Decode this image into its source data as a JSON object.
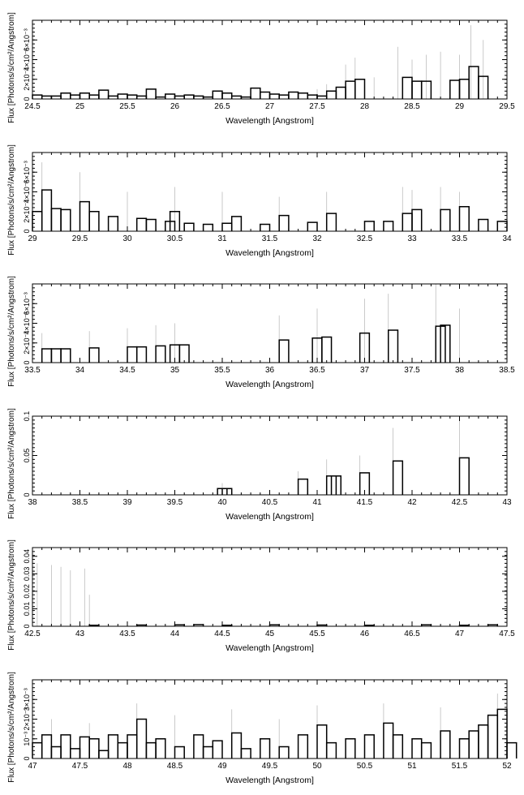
{
  "chart_data": [
    {
      "type": "step",
      "xlabel": "Wavelength [Angstrom]",
      "ylabel": "Flux [Photons/s/cm²/Angstrom]",
      "xlim": [
        24.5,
        29.5
      ],
      "ylim": [
        0,
        0.008
      ],
      "xticks": [
        "24.5",
        "25",
        "25.5",
        "26",
        "26.5",
        "27",
        "27.5",
        "28",
        "28.5",
        "29",
        "29.5"
      ],
      "yticks": [
        {
          "v": 0,
          "label": "0"
        },
        {
          "v": 0.002,
          "label": "2×10⁻³"
        },
        {
          "v": 0.004,
          "label": "4×10⁻³"
        },
        {
          "v": 0.006,
          "label": "6×10⁻³"
        }
      ],
      "bins": [
        [
          24.5,
          0.0004
        ],
        [
          24.6,
          0.0003
        ],
        [
          24.7,
          0.0003
        ],
        [
          24.8,
          0.0006
        ],
        [
          24.9,
          0.0004
        ],
        [
          25.0,
          0.0006
        ],
        [
          25.1,
          0.0004
        ],
        [
          25.2,
          0.0009
        ],
        [
          25.3,
          0.0003
        ],
        [
          25.4,
          0.0005
        ],
        [
          25.5,
          0.0004
        ],
        [
          25.6,
          0.0003
        ],
        [
          25.7,
          0.001
        ],
        [
          25.8,
          0.0002
        ],
        [
          25.9,
          0.0005
        ],
        [
          26.0,
          0.0003
        ],
        [
          26.1,
          0.0004
        ],
        [
          26.2,
          0.0003
        ],
        [
          26.3,
          0.0002
        ],
        [
          26.4,
          0.0008
        ],
        [
          26.5,
          0.0006
        ],
        [
          26.6,
          0.0003
        ],
        [
          26.7,
          0.0002
        ],
        [
          26.8,
          0.0011
        ],
        [
          26.9,
          0.0007
        ],
        [
          27.0,
          0.0005
        ],
        [
          27.1,
          0.0004
        ],
        [
          27.2,
          0.0007
        ],
        [
          27.3,
          0.0006
        ],
        [
          27.4,
          0.0004
        ],
        [
          27.5,
          0.0003
        ],
        [
          27.6,
          0.0008
        ],
        [
          27.7,
          0.0012
        ],
        [
          27.8,
          0.0018
        ],
        [
          27.9,
          0.002
        ],
        [
          28.4,
          0.0022
        ],
        [
          28.5,
          0.0018
        ],
        [
          28.6,
          0.0018
        ],
        [
          28.9,
          0.0019
        ],
        [
          29.0,
          0.002
        ],
        [
          29.1,
          0.0033
        ],
        [
          29.2,
          0.0023
        ]
      ],
      "errorbars": [
        [
          27.5,
          0.001
        ],
        [
          27.6,
          0.0015
        ],
        [
          27.8,
          0.0035
        ],
        [
          27.9,
          0.0042
        ],
        [
          28.1,
          0.0022
        ],
        [
          28.35,
          0.0053
        ],
        [
          28.5,
          0.004
        ],
        [
          28.65,
          0.0045
        ],
        [
          28.8,
          0.0048
        ],
        [
          29.0,
          0.0045
        ],
        [
          29.12,
          0.0075
        ],
        [
          29.25,
          0.006
        ]
      ]
    },
    {
      "type": "step",
      "xlabel": "Wavelength [Angstrom]",
      "ylabel": "Flux [Photons/s/cm²/Angstrom]",
      "xlim": [
        29,
        34
      ],
      "ylim": [
        0,
        0.008
      ],
      "xticks": [
        "29",
        "29.5",
        "30",
        "30.5",
        "31",
        "31.5",
        "32",
        "32.5",
        "33",
        "33.5",
        "34"
      ],
      "yticks": [
        {
          "v": 0,
          "label": "0"
        },
        {
          "v": 0.002,
          "label": "2×10⁻³"
        },
        {
          "v": 0.004,
          "label": "4×10⁻³"
        },
        {
          "v": 0.006,
          "label": "6×10⁻³"
        }
      ],
      "bins": [
        [
          29.0,
          0.002
        ],
        [
          29.1,
          0.0042
        ],
        [
          29.2,
          0.0023
        ],
        [
          29.3,
          0.0022
        ],
        [
          29.5,
          0.003
        ],
        [
          29.6,
          0.002
        ],
        [
          29.8,
          0.0015
        ],
        [
          30.1,
          0.0013
        ],
        [
          30.2,
          0.0012
        ],
        [
          30.4,
          0.001
        ],
        [
          30.45,
          0.002
        ],
        [
          30.6,
          0.0008
        ],
        [
          30.8,
          0.0007
        ],
        [
          31.0,
          0.0008
        ],
        [
          31.1,
          0.0015
        ],
        [
          31.4,
          0.0007
        ],
        [
          31.6,
          0.0016
        ],
        [
          31.9,
          0.0009
        ],
        [
          32.1,
          0.0018
        ],
        [
          32.5,
          0.001
        ],
        [
          32.7,
          0.001
        ],
        [
          32.9,
          0.0018
        ],
        [
          33.0,
          0.0022
        ],
        [
          33.3,
          0.0022
        ],
        [
          33.5,
          0.0025
        ],
        [
          33.7,
          0.0012
        ],
        [
          33.9,
          0.001
        ]
      ],
      "errorbars": [
        [
          29.1,
          0.007
        ],
        [
          29.5,
          0.006
        ],
        [
          30.0,
          0.004
        ],
        [
          30.5,
          0.0045
        ],
        [
          31.0,
          0.004
        ],
        [
          31.6,
          0.0035
        ],
        [
          32.1,
          0.004
        ],
        [
          32.9,
          0.0045
        ],
        [
          33.0,
          0.0042
        ],
        [
          33.3,
          0.0045
        ],
        [
          33.5,
          0.004
        ]
      ]
    },
    {
      "type": "step",
      "xlabel": "Wavelength [Angstrom]",
      "ylabel": "Flux [Photons/s/cm²/Angstrom]",
      "xlim": [
        33.5,
        38.5
      ],
      "ylim": [
        0,
        0.008
      ],
      "xticks": [
        "33.5",
        "34",
        "34.5",
        "35",
        "35.5",
        "36",
        "36.5",
        "37",
        "37.5",
        "38",
        "38.5"
      ],
      "yticks": [
        {
          "v": 0,
          "label": "0"
        },
        {
          "v": 0.002,
          "label": "2×10⁻³"
        },
        {
          "v": 0.004,
          "label": "4×10⁻³"
        },
        {
          "v": 0.006,
          "label": "6×10⁻³"
        }
      ],
      "bins": [
        [
          33.6,
          0.0014
        ],
        [
          33.7,
          0.0014
        ],
        [
          33.8,
          0.0014
        ],
        [
          34.1,
          0.0015
        ],
        [
          34.5,
          0.0016
        ],
        [
          34.6,
          0.0016
        ],
        [
          34.8,
          0.0017
        ],
        [
          34.95,
          0.0018
        ],
        [
          35.05,
          0.0018
        ],
        [
          36.1,
          0.0023
        ],
        [
          36.45,
          0.0025
        ],
        [
          36.55,
          0.0026
        ],
        [
          36.95,
          0.003
        ],
        [
          37.25,
          0.0033
        ],
        [
          37.75,
          0.0037
        ],
        [
          37.8,
          0.0038
        ]
      ],
      "errorbars": [
        [
          33.6,
          0.003
        ],
        [
          34.1,
          0.0032
        ],
        [
          34.5,
          0.0035
        ],
        [
          34.8,
          0.0038
        ],
        [
          35.0,
          0.004
        ],
        [
          36.1,
          0.0048
        ],
        [
          36.5,
          0.0055
        ],
        [
          37.0,
          0.0065
        ],
        [
          37.25,
          0.007
        ],
        [
          37.75,
          0.008
        ],
        [
          38.0,
          0.0055
        ]
      ]
    },
    {
      "type": "step",
      "xlabel": "Wavelength [Angstrom]",
      "ylabel": "Flux [Photons/s/cm²/Angstrom]",
      "xlim": [
        38,
        43
      ],
      "ylim": [
        0,
        0.1
      ],
      "xticks": [
        "38",
        "38.5",
        "39",
        "39.5",
        "40",
        "40.5",
        "41",
        "41.5",
        "42",
        "42.5",
        "43"
      ],
      "yticks": [
        {
          "v": 0,
          "label": "0"
        },
        {
          "v": 0.05,
          "label": "0.05"
        },
        {
          "v": 0.1,
          "label": "0.1"
        }
      ],
      "bins": [
        [
          39.95,
          0.008
        ],
        [
          40.0,
          0.008
        ],
        [
          40.8,
          0.02
        ],
        [
          41.1,
          0.024
        ],
        [
          41.15,
          0.024
        ],
        [
          41.45,
          0.028
        ],
        [
          41.8,
          0.043
        ],
        [
          42.5,
          0.047
        ]
      ],
      "errorbars": [
        [
          40.0,
          0.015
        ],
        [
          40.8,
          0.03
        ],
        [
          41.1,
          0.045
        ],
        [
          41.45,
          0.05
        ],
        [
          41.8,
          0.085
        ],
        [
          42.5,
          0.095
        ]
      ]
    },
    {
      "type": "step",
      "xlabel": "Wavelength [Angstrom]",
      "ylabel": "Flux [Photons/s/cm²/Angstrom]",
      "xlim": [
        42.5,
        47.5
      ],
      "ylim": [
        0,
        0.045
      ],
      "xticks": [
        "42.5",
        "43",
        "43.5",
        "44",
        "44.5",
        "45",
        "45.5",
        "46",
        "46.5",
        "47",
        "47.5"
      ],
      "yticks": [
        {
          "v": 0,
          "label": "0"
        },
        {
          "v": 0.01,
          "label": "0.01"
        },
        {
          "v": 0.02,
          "label": "0.02"
        },
        {
          "v": 0.03,
          "label": "0.03"
        },
        {
          "v": 0.04,
          "label": "0.04"
        }
      ],
      "bins": [
        [
          43.1,
          0.0006
        ],
        [
          43.6,
          0.0007
        ],
        [
          44.0,
          0.0008
        ],
        [
          44.2,
          0.0009
        ],
        [
          44.5,
          0.0006
        ],
        [
          45.0,
          0.0008
        ],
        [
          45.5,
          0.0007
        ],
        [
          46.0,
          0.0006
        ],
        [
          46.6,
          0.0008
        ],
        [
          47.0,
          0.0006
        ],
        [
          47.3,
          0.0008
        ]
      ],
      "errorbars": [
        [
          42.55,
          0.036
        ],
        [
          42.7,
          0.035
        ],
        [
          42.8,
          0.034
        ],
        [
          42.9,
          0.032
        ],
        [
          43.05,
          0.033
        ],
        [
          43.1,
          0.018
        ]
      ]
    },
    {
      "type": "step",
      "xlabel": "Wavelength [Angstrom]",
      "ylabel": "Flux [Photons/s/cm²/Angstrom]",
      "xlim": [
        47,
        52
      ],
      "ylim": [
        0,
        0.004
      ],
      "xticks": [
        "47",
        "47.5",
        "48",
        "48.5",
        "49",
        "49.5",
        "50",
        "50.5",
        "51",
        "51.5",
        "52"
      ],
      "yticks": [
        {
          "v": 0,
          "label": "0"
        },
        {
          "v": 0.001,
          "label": "10⁻³"
        },
        {
          "v": 0.002,
          "label": "2×10⁻³"
        },
        {
          "v": 0.003,
          "label": "3×10⁻³"
        }
      ],
      "bins": [
        [
          47.0,
          0.0008
        ],
        [
          47.1,
          0.0012
        ],
        [
          47.2,
          0.0006
        ],
        [
          47.3,
          0.0012
        ],
        [
          47.4,
          0.0005
        ],
        [
          47.5,
          0.0011
        ],
        [
          47.6,
          0.001
        ],
        [
          47.7,
          0.0004
        ],
        [
          47.8,
          0.0012
        ],
        [
          47.9,
          0.0008
        ],
        [
          48.0,
          0.0012
        ],
        [
          48.1,
          0.002
        ],
        [
          48.2,
          0.0008
        ],
        [
          48.3,
          0.001
        ],
        [
          48.5,
          0.0006
        ],
        [
          48.7,
          0.0012
        ],
        [
          48.8,
          0.0006
        ],
        [
          48.9,
          0.0009
        ],
        [
          49.1,
          0.0013
        ],
        [
          49.2,
          0.0005
        ],
        [
          49.4,
          0.001
        ],
        [
          49.6,
          0.0006
        ],
        [
          49.8,
          0.0012
        ],
        [
          50.0,
          0.0017
        ],
        [
          50.1,
          0.0008
        ],
        [
          50.3,
          0.001
        ],
        [
          50.5,
          0.0012
        ],
        [
          50.7,
          0.0018
        ],
        [
          50.8,
          0.0012
        ],
        [
          51.0,
          0.001
        ],
        [
          51.1,
          0.0008
        ],
        [
          51.3,
          0.0014
        ],
        [
          51.5,
          0.001
        ],
        [
          51.6,
          0.0014
        ],
        [
          51.7,
          0.0017
        ],
        [
          51.8,
          0.0022
        ],
        [
          51.9,
          0.0025
        ],
        [
          52.0,
          0.0008
        ]
      ],
      "errorbars": [
        [
          47.2,
          0.002
        ],
        [
          47.6,
          0.0018
        ],
        [
          48.1,
          0.0028
        ],
        [
          48.5,
          0.0022
        ],
        [
          49.1,
          0.0025
        ],
        [
          49.6,
          0.002
        ],
        [
          50.0,
          0.0027
        ],
        [
          50.7,
          0.0028
        ],
        [
          51.3,
          0.0026
        ],
        [
          51.9,
          0.0033
        ]
      ]
    }
  ]
}
